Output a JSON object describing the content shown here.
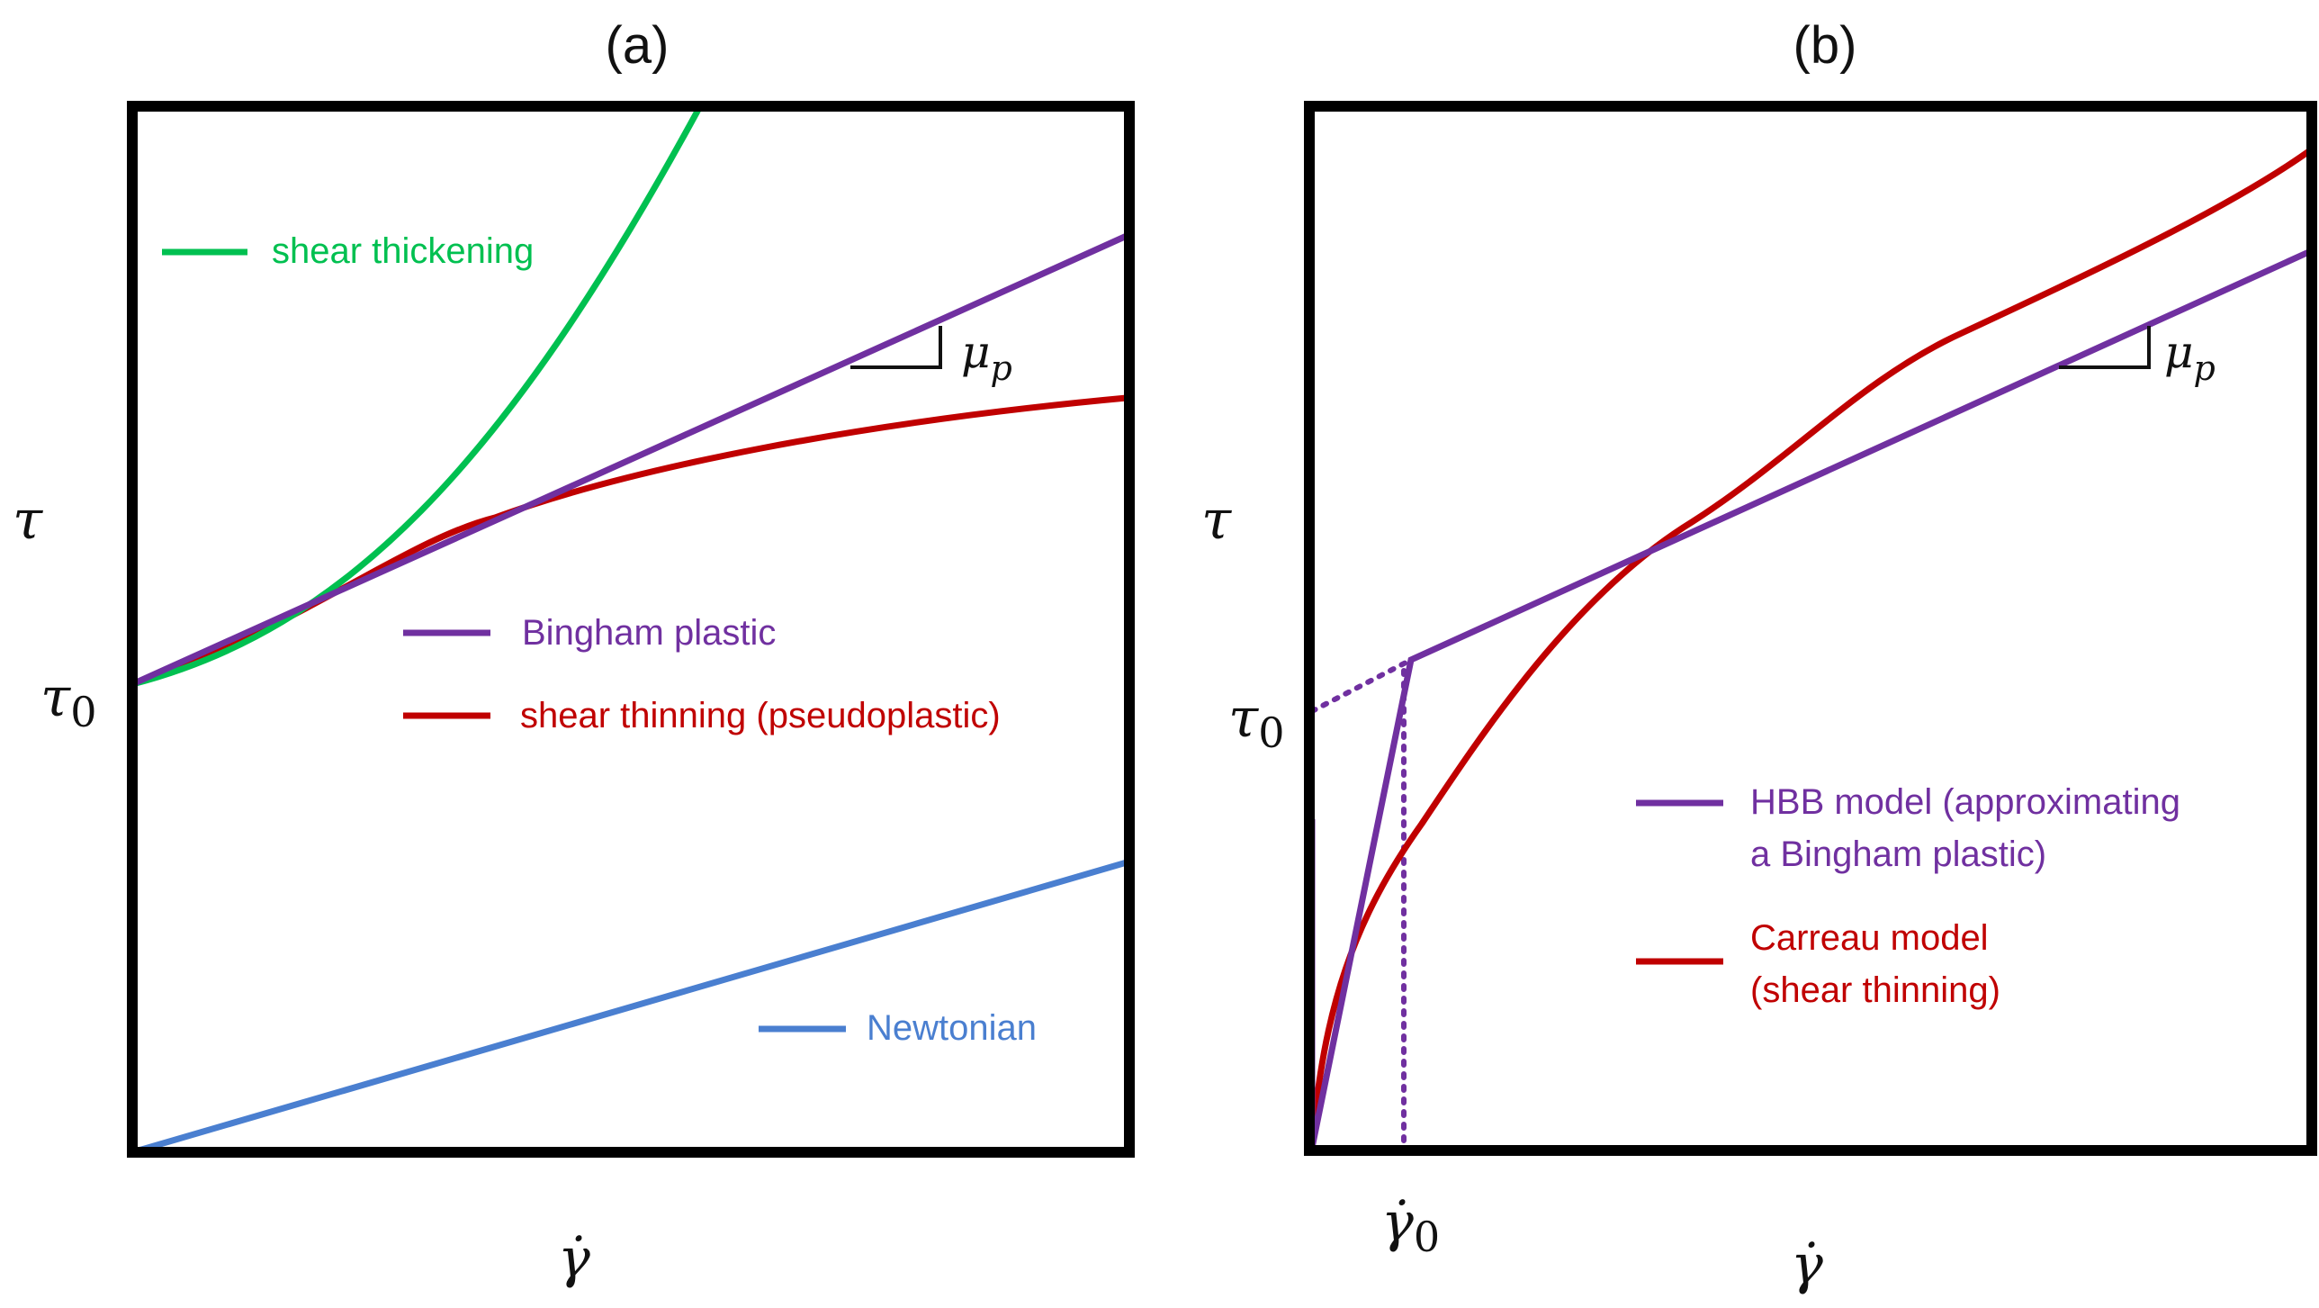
{
  "colors": {
    "green": "#00c050",
    "purple": "#7030a0",
    "red": "#c00000",
    "blue": "#4a7fd0",
    "frame": "#000000"
  },
  "panel_a": {
    "title": "(a)",
    "y_label": "τ",
    "x_label": "γ̇",
    "yield_label": "τ0",
    "slope_label": "μp",
    "legend": {
      "shear_thickening": "shear thickening",
      "bingham": "Bingham plastic",
      "shear_thinning": "shear thinning (pseudoplastic)",
      "newtonian": "Newtonian"
    }
  },
  "panel_b": {
    "title": "(b)",
    "y_label": "τ",
    "x_label": "γ̇",
    "yield_label": "τ0",
    "strain_rate_label": "γ̇0",
    "slope_label": "μp",
    "legend": {
      "hbb_line1": "HBB model (approximating",
      "hbb_line2": "a Bingham plastic)",
      "carreau_line1": "Carreau model",
      "carreau_line2": "(shear thinning)"
    }
  },
  "chart_data": [
    {
      "type": "line",
      "title": "(a)",
      "xlabel": "γ̇",
      "ylabel": "τ",
      "xlim": [
        0,
        1
      ],
      "ylim": [
        0,
        1
      ],
      "tau0": 0.44,
      "series": [
        {
          "name": "shear thickening",
          "x": [
            0,
            0.1,
            0.2,
            0.3,
            0.4,
            0.57
          ],
          "y": [
            0.44,
            0.49,
            0.56,
            0.66,
            0.78,
            1.0
          ]
        },
        {
          "name": "Bingham plastic",
          "x": [
            0,
            1
          ],
          "y": [
            0.44,
            0.877
          ]
        },
        {
          "name": "shear thinning (pseudoplastic)",
          "x": [
            0,
            0.25,
            0.5,
            0.75,
            1
          ],
          "y": [
            0.44,
            0.55,
            0.63,
            0.68,
            0.72
          ]
        },
        {
          "name": "Newtonian",
          "x": [
            0,
            1
          ],
          "y": [
            0,
            0.275
          ]
        }
      ]
    },
    {
      "type": "line",
      "title": "(b)",
      "xlabel": "γ̇",
      "ylabel": "τ",
      "xlim": [
        0,
        1
      ],
      "ylim": [
        0,
        1
      ],
      "tau0": 0.41,
      "gamma0": 0.095,
      "series": [
        {
          "name": "HBB model (approximating a Bingham plastic)",
          "x": [
            0,
            0.1,
            1
          ],
          "y": [
            0,
            0.47,
            0.86
          ]
        },
        {
          "name": "Carreau model (shear thinning)",
          "x": [
            0,
            0.05,
            0.1,
            0.2,
            0.38,
            0.5,
            0.7,
            1
          ],
          "y": [
            0,
            0.2,
            0.31,
            0.41,
            0.59,
            0.68,
            0.8,
            0.96
          ]
        }
      ]
    }
  ]
}
